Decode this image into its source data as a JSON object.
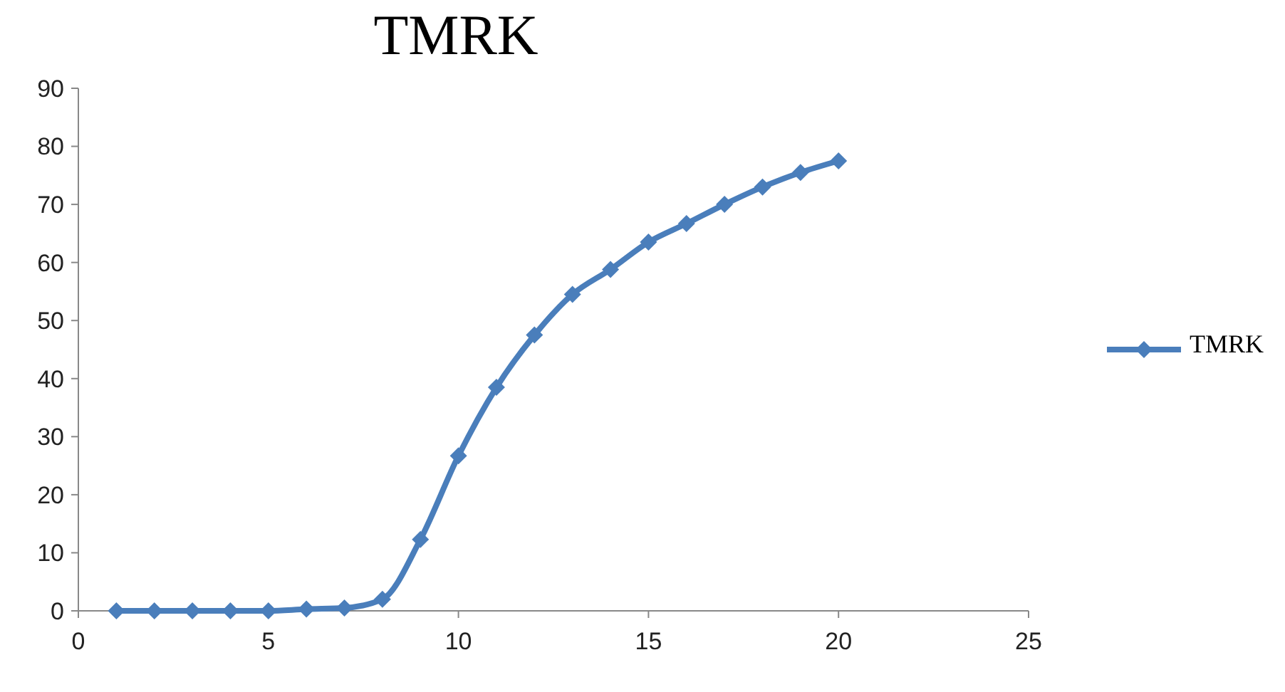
{
  "chart_data": {
    "type": "line",
    "title": "TMRK",
    "x": [
      1,
      2,
      3,
      4,
      5,
      6,
      7,
      8,
      9,
      10,
      11,
      12,
      13,
      14,
      15,
      16,
      17,
      18,
      19,
      20
    ],
    "series": [
      {
        "name": "TMRK",
        "color": "#4a7ebb",
        "values": [
          0,
          0,
          0,
          0,
          0,
          0.3,
          0.5,
          2,
          12.3,
          26.7,
          38.5,
          47.5,
          54.5,
          58.8,
          63.5,
          66.7,
          70,
          73,
          75.5,
          77.5
        ]
      }
    ],
    "xlim": [
      0,
      25
    ],
    "xticks": [
      0,
      5,
      10,
      15,
      20,
      25
    ],
    "ylim": [
      0,
      90
    ],
    "yticks": [
      0,
      10,
      20,
      30,
      40,
      50,
      60,
      70,
      80,
      90
    ],
    "grid": false,
    "legend": "right",
    "marker": "diamond",
    "line_style": "solid"
  }
}
